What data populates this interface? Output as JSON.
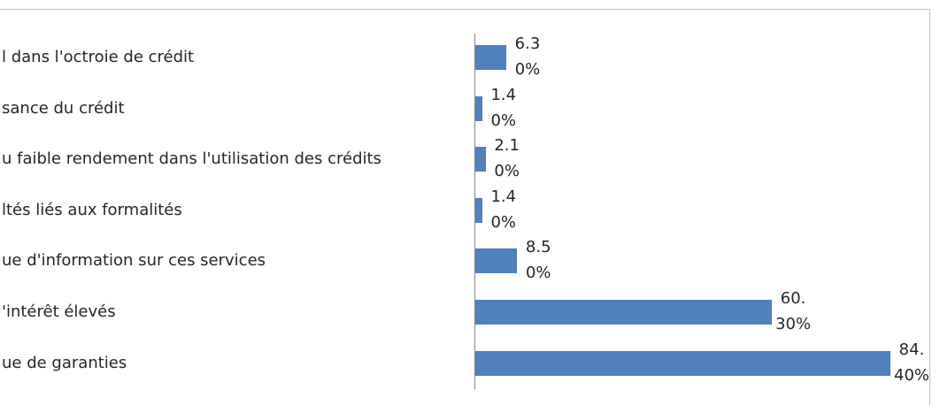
{
  "chart_data": {
    "type": "bar",
    "orientation": "horizontal",
    "color": "#4f81bd",
    "categories": [
      "l dans l'octroie de crédit",
      "sance du crédit",
      "u faible rendement dans l'utilisation des crédits",
      "ltés liés aux formalités",
      "ue d'information sur ces services",
      "'intérêt élevés",
      "ue de garanties"
    ],
    "values": [
      6.3,
      1.4,
      2.1,
      1.4,
      8.5,
      60.3,
      84.4
    ],
    "value_labels": [
      "6.30%",
      "1.40%",
      "2.10%",
      "1.40%",
      "8.50%",
      "60.30%",
      "84.40%"
    ]
  }
}
